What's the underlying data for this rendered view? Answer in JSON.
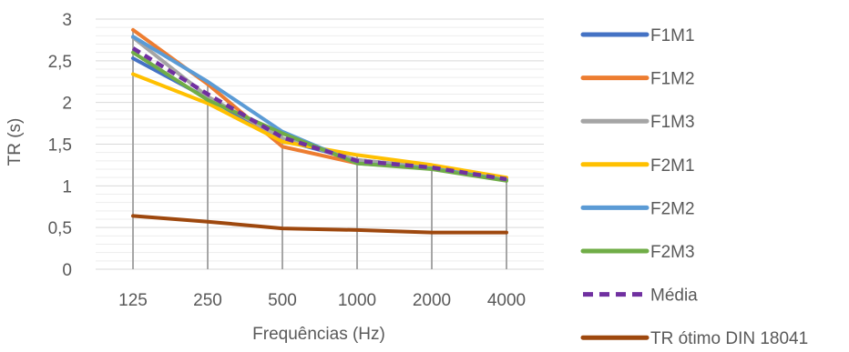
{
  "chart_data": {
    "type": "line",
    "xlabel": "Frequências (Hz)",
    "ylabel": "TR (s)",
    "categories": [
      "125",
      "250",
      "500",
      "1000",
      "2000",
      "4000"
    ],
    "ylim": [
      0,
      3
    ],
    "yticks": [
      0,
      0.5,
      1,
      1.5,
      2,
      2.5,
      3
    ],
    "ytick_labels": [
      "0",
      "0,5",
      "1",
      "1,5",
      "2",
      "2,5",
      "3"
    ],
    "grid": true,
    "legend_position": "right",
    "series": [
      {
        "name": "F1M1",
        "color": "#4472C4",
        "dashed": false,
        "values": [
          2.53,
          2.05,
          1.55,
          1.31,
          1.22,
          1.07
        ]
      },
      {
        "name": "F1M2",
        "color": "#ED7D31",
        "dashed": false,
        "values": [
          2.87,
          2.22,
          1.47,
          1.27,
          1.23,
          1.08
        ]
      },
      {
        "name": "F1M3",
        "color": "#A5A5A5",
        "dashed": false,
        "values": [
          2.78,
          2.07,
          1.57,
          1.31,
          1.22,
          1.07
        ]
      },
      {
        "name": "F2M1",
        "color": "#FFC000",
        "dashed": false,
        "values": [
          2.34,
          1.99,
          1.53,
          1.37,
          1.25,
          1.1
        ]
      },
      {
        "name": "F2M2",
        "color": "#5B9BD5",
        "dashed": false,
        "values": [
          2.79,
          2.25,
          1.65,
          1.27,
          1.21,
          1.07
        ]
      },
      {
        "name": "F2M3",
        "color": "#70AD47",
        "dashed": false,
        "values": [
          2.6,
          2.03,
          1.63,
          1.27,
          1.2,
          1.06
        ]
      },
      {
        "name": "Média",
        "color": "#7030A0",
        "dashed": true,
        "values": [
          2.65,
          2.1,
          1.58,
          1.3,
          1.22,
          1.08
        ]
      },
      {
        "name": "TR ótimo DIN 18041",
        "color": "#9E480E",
        "dashed": false,
        "values": [
          0.64,
          0.57,
          0.49,
          0.47,
          0.44,
          0.44
        ]
      }
    ]
  }
}
